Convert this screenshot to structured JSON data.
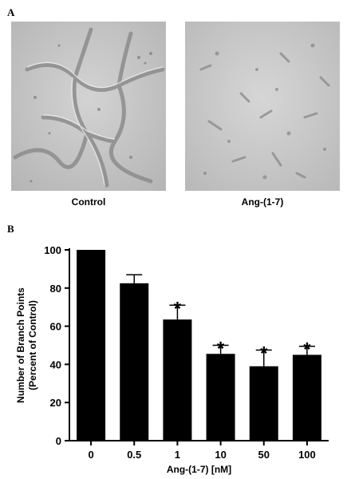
{
  "panel_a": {
    "letter": "A",
    "images": [
      {
        "label": "Control"
      },
      {
        "label": "Ang-(1-7)"
      }
    ]
  },
  "panel_b": {
    "letter": "B"
  },
  "chart_data": {
    "type": "bar",
    "categories": [
      "0",
      "0.5",
      "1",
      "10",
      "50",
      "100"
    ],
    "values": [
      100,
      82.5,
      63.5,
      45.5,
      39,
      45
    ],
    "errors": [
      0,
      4.5,
      7.5,
      4.5,
      8.5,
      4.5
    ],
    "significant": [
      false,
      false,
      true,
      true,
      true,
      true
    ],
    "significance_marker": "*",
    "xlabel": "Ang-(1-7) [nM]",
    "ylabel": [
      "Number of Branch Points",
      "(Percent of Control)"
    ],
    "ylim": [
      0,
      100
    ],
    "yticks": [
      0,
      20,
      40,
      60,
      80,
      100
    ],
    "bar_color": "#000000",
    "grid": false
  }
}
